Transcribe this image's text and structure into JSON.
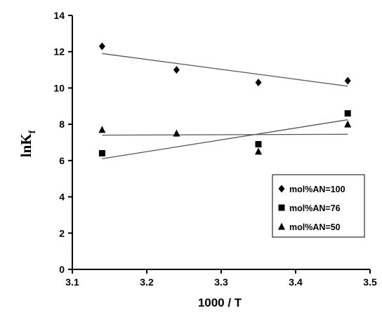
{
  "chart_data": {
    "type": "scatter",
    "xlabel": "1000 / T",
    "ylabel_main": "lnK",
    "ylabel_sub": "f",
    "xlim": [
      3.1,
      3.5
    ],
    "ylim": [
      0,
      14
    ],
    "xticks": [
      3.1,
      3.2,
      3.3,
      3.4,
      3.5
    ],
    "xtick_labels": [
      "3.1",
      "3.2",
      "3.3",
      "3.4",
      "3.5"
    ],
    "yticks": [
      0,
      2,
      4,
      6,
      8,
      10,
      12,
      14
    ],
    "ytick_labels": [
      "0",
      "2",
      "4",
      "6",
      "8",
      "10",
      "12",
      "14"
    ],
    "grid": false,
    "legend_position": "lower-right",
    "series": [
      {
        "name": "mol%AN=100",
        "marker": "diamond",
        "color": "#000000",
        "x": [
          3.14,
          3.24,
          3.35,
          3.47
        ],
        "y": [
          12.3,
          11.0,
          10.3,
          10.4
        ],
        "trend": {
          "x": [
            3.14,
            3.47
          ],
          "y": [
            11.9,
            10.1
          ]
        }
      },
      {
        "name": "mol%AN=76",
        "marker": "square",
        "color": "#000000",
        "x": [
          3.14,
          3.35,
          3.47
        ],
        "y": [
          6.4,
          6.9,
          8.6
        ],
        "trend": {
          "x": [
            3.14,
            3.47
          ],
          "y": [
            6.1,
            8.25
          ]
        }
      },
      {
        "name": "mol%AN=50",
        "marker": "triangle",
        "color": "#000000",
        "x": [
          3.14,
          3.24,
          3.35,
          3.47
        ],
        "y": [
          7.7,
          7.5,
          6.5,
          8.0
        ],
        "trend": {
          "x": [
            3.14,
            3.47
          ],
          "y": [
            7.4,
            7.45
          ]
        }
      }
    ]
  }
}
